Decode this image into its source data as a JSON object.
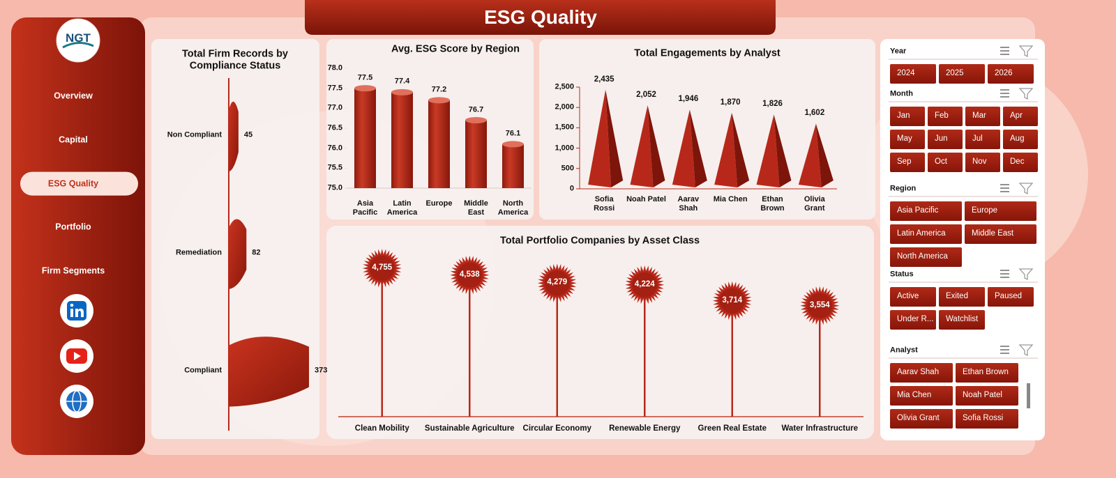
{
  "header": {
    "title": "ESG Quality"
  },
  "logo": {
    "text": "NGT"
  },
  "nav": {
    "items": [
      "Overview",
      "Capital",
      "ESG Quality",
      "Portfolio",
      "Firm Segments"
    ],
    "active": "ESG Quality"
  },
  "chart_data": [
    {
      "type": "hbar",
      "title": "Total Firm Records by Compliance Status",
      "categories": [
        "Non Compliant",
        "Remediation",
        "Compliant"
      ],
      "values": [
        45,
        82,
        373
      ],
      "color": "#b8281a"
    },
    {
      "type": "bar",
      "title": "Avg. ESG Score by Region",
      "categories": [
        "Asia Pacific",
        "Latin America",
        "Europe",
        "Middle East",
        "North America"
      ],
      "values": [
        77.5,
        77.4,
        77.2,
        76.7,
        76.1
      ],
      "color": "#b8281a",
      "ylim": [
        75,
        78
      ],
      "yticks": [
        {
          "value": 75,
          "label": "75.0"
        },
        75.5,
        {
          "value": 76,
          "label": "76.0"
        },
        76.5,
        {
          "value": 77,
          "label": "77.0"
        },
        77.5,
        {
          "value": 78,
          "label": "78.0"
        }
      ]
    },
    {
      "type": "pyramid",
      "title": "Total Engagements by Analyst",
      "categories": [
        "Sofia Rossi",
        "Noah Patel",
        "Aarav Shah",
        "Mia Chen",
        "Ethan Brown",
        "Olivia Grant"
      ],
      "values": [
        2435,
        2052,
        1946,
        1870,
        1826,
        1602
      ],
      "value_labels": [
        "2,435",
        "2,052",
        "1,946",
        "1,870",
        "1,826",
        "1,602"
      ],
      "color": "#b8281a",
      "ylim": [
        0,
        2500
      ],
      "yticks": [
        0,
        500,
        {
          "value": 1000,
          "label": "1,000"
        },
        {
          "value": 1500,
          "label": "1,500"
        },
        {
          "value": 2000,
          "label": "2,000"
        },
        {
          "value": 2500,
          "label": "2,500"
        }
      ]
    },
    {
      "type": "lollipop",
      "title": "Total Portfolio Companies by Asset Class",
      "categories": [
        "Clean Mobility",
        "Sustainable Agriculture",
        "Circular Economy",
        "Renewable Energy",
        "Green Real Estate",
        "Water Infrastructure"
      ],
      "values": [
        4755,
        4538,
        4279,
        4224,
        3714,
        3554
      ],
      "value_labels": [
        "4,755",
        "4,538",
        "4,279",
        "4,224",
        "3,714",
        "3,554"
      ],
      "color": "#b8281a"
    }
  ],
  "slicers": [
    {
      "title": "Year",
      "items": [
        "2024",
        "2025",
        "2026"
      ]
    },
    {
      "title": "Month",
      "items": [
        "Jan",
        "Feb",
        "Mar",
        "Apr",
        "May",
        "Jun",
        "Jul",
        "Aug",
        "Sep",
        "Oct",
        "Nov",
        "Dec"
      ]
    },
    {
      "title": "Region",
      "items": [
        "Asia Pacific",
        "Europe",
        "Latin America",
        "Middle East",
        "North America"
      ]
    },
    {
      "title": "Status",
      "items": [
        "Active",
        "Exited",
        "Paused",
        "Under R...",
        "Watchlist"
      ]
    },
    {
      "title": "Analyst",
      "items": [
        "Aarav Shah",
        "Ethan Brown",
        "Mia Chen",
        "Noah Patel",
        "Olivia Grant",
        "Sofia Rossi"
      ]
    }
  ]
}
